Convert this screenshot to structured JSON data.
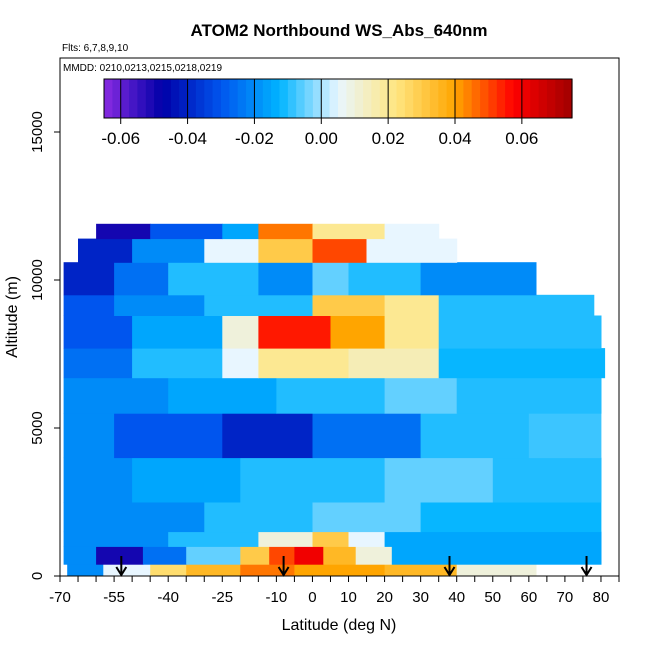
{
  "chart_data": {
    "type": "heatmap",
    "title": "ATOM2 Northbound WS_Abs_640nm",
    "subtitle_lines": [
      "Flts: 6,7,8,9,10",
      "MMDD: 0210,0213,0215,0218,0219"
    ],
    "xlabel": "Latitude (deg N)",
    "ylabel": "Altitude (m)",
    "xlim": [
      -70,
      85
    ],
    "ylim": [
      0,
      17500
    ],
    "x_ticks": [
      -70,
      -55,
      -40,
      -25,
      -10,
      0,
      10,
      20,
      30,
      40,
      50,
      60,
      70,
      80
    ],
    "y_ticks": [
      0,
      5000,
      10000,
      15000
    ],
    "colorbar": {
      "range": [
        -0.065,
        0.075
      ],
      "ticks": [
        -0.06,
        -0.04,
        -0.02,
        0.0,
        0.02,
        0.04,
        0.06
      ],
      "tick_labels": [
        "-0.06",
        "-0.04",
        "-0.02",
        "0.00",
        "0.02",
        "0.04",
        "0.06"
      ],
      "colors": [
        "#8a2be2",
        "#0000a8",
        "#0055ee",
        "#00b4ff",
        "#e8f6ff",
        "#ffe680",
        "#ffa500",
        "#ff0000",
        "#a00000"
      ]
    },
    "altitude_bands": [
      {
        "alt": [
          0,
          400
        ],
        "lat": [
          -68,
          62
        ],
        "cells": [
          [
            -68,
            -58,
            -0.02
          ],
          [
            -58,
            -45,
            0.005
          ],
          [
            -45,
            -35,
            0.025
          ],
          [
            -35,
            -20,
            0.035
          ],
          [
            -20,
            -5,
            0.045
          ],
          [
            -5,
            20,
            0.04
          ],
          [
            20,
            40,
            0.035
          ],
          [
            40,
            62,
            0.01
          ]
        ]
      },
      {
        "alt": [
          400,
          1000
        ],
        "lat": [
          -69,
          80
        ],
        "cells": [
          [
            -69,
            -60,
            -0.02
          ],
          [
            -60,
            -47,
            -0.05
          ],
          [
            -47,
            -35,
            -0.025
          ],
          [
            -35,
            -20,
            -0.005
          ],
          [
            -20,
            -12,
            0.03
          ],
          [
            -12,
            -5,
            0.05
          ],
          [
            -5,
            3,
            0.06
          ],
          [
            3,
            12,
            0.035
          ],
          [
            12,
            22,
            0.01
          ],
          [
            22,
            80,
            -0.015
          ]
        ]
      },
      {
        "alt": [
          1000,
          1500
        ],
        "lat": [
          -69,
          80
        ],
        "cells": [
          [
            -69,
            -40,
            -0.02
          ],
          [
            -40,
            -15,
            -0.01
          ],
          [
            -15,
            0,
            0.01
          ],
          [
            0,
            10,
            0.03
          ],
          [
            10,
            20,
            0.005
          ],
          [
            20,
            80,
            -0.015
          ]
        ]
      },
      {
        "alt": [
          1500,
          2500
        ],
        "lat": [
          -69,
          80
        ],
        "cells": [
          [
            -69,
            -30,
            -0.02
          ],
          [
            -30,
            0,
            -0.01
          ],
          [
            0,
            30,
            -0.005
          ],
          [
            30,
            80,
            -0.012
          ]
        ]
      },
      {
        "alt": [
          2500,
          4000
        ],
        "lat": [
          -69,
          80
        ],
        "cells": [
          [
            -69,
            -50,
            -0.02
          ],
          [
            -50,
            -20,
            -0.015
          ],
          [
            -20,
            20,
            -0.01
          ],
          [
            20,
            50,
            -0.005
          ],
          [
            50,
            80,
            -0.01
          ]
        ]
      },
      {
        "alt": [
          4000,
          5500
        ],
        "lat": [
          -69,
          80
        ],
        "cells": [
          [
            -69,
            -55,
            -0.02
          ],
          [
            -55,
            -25,
            -0.03
          ],
          [
            -25,
            0,
            -0.04
          ],
          [
            0,
            30,
            -0.025
          ],
          [
            30,
            60,
            -0.01
          ],
          [
            60,
            80,
            -0.008
          ]
        ]
      },
      {
        "alt": [
          5500,
          6700
        ],
        "lat": [
          -69,
          80
        ],
        "cells": [
          [
            -69,
            -40,
            -0.02
          ],
          [
            -40,
            -10,
            -0.015
          ],
          [
            -10,
            20,
            -0.01
          ],
          [
            20,
            40,
            -0.005
          ],
          [
            40,
            80,
            -0.01
          ]
        ]
      },
      {
        "alt": [
          6700,
          7700
        ],
        "lat": [
          -69,
          81
        ],
        "cells": [
          [
            -69,
            -50,
            -0.025
          ],
          [
            -50,
            -25,
            -0.01
          ],
          [
            -25,
            -15,
            0.005
          ],
          [
            -15,
            10,
            0.02
          ],
          [
            10,
            35,
            0.015
          ],
          [
            35,
            81,
            -0.012
          ]
        ]
      },
      {
        "alt": [
          7700,
          8800
        ],
        "lat": [
          -69,
          80
        ],
        "cells": [
          [
            -69,
            -50,
            -0.03
          ],
          [
            -50,
            -25,
            -0.015
          ],
          [
            -25,
            -15,
            0.01
          ],
          [
            -15,
            5,
            0.055
          ],
          [
            5,
            20,
            0.04
          ],
          [
            20,
            35,
            0.02
          ],
          [
            35,
            80,
            -0.01
          ]
        ]
      },
      {
        "alt": [
          8800,
          9500
        ],
        "lat": [
          -69,
          78
        ],
        "cells": [
          [
            -69,
            -55,
            -0.03
          ],
          [
            -55,
            -30,
            -0.02
          ],
          [
            -30,
            0,
            -0.01
          ],
          [
            0,
            20,
            0.03
          ],
          [
            20,
            35,
            0.02
          ],
          [
            35,
            78,
            -0.01
          ]
        ]
      },
      {
        "alt": [
          9500,
          10600
        ],
        "lat": [
          -69,
          62
        ],
        "cells": [
          [
            -69,
            -55,
            -0.04
          ],
          [
            -55,
            -40,
            -0.025
          ],
          [
            -40,
            -15,
            -0.01
          ],
          [
            -15,
            0,
            -0.02
          ],
          [
            0,
            10,
            -0.005
          ],
          [
            10,
            30,
            -0.01
          ],
          [
            30,
            62,
            -0.02
          ]
        ]
      },
      {
        "alt": [
          10600,
          11400
        ],
        "lat": [
          -65,
          40
        ],
        "cells": [
          [
            -65,
            -50,
            -0.04
          ],
          [
            -50,
            -30,
            -0.02
          ],
          [
            -30,
            -15,
            0.005
          ],
          [
            -15,
            0,
            0.03
          ],
          [
            0,
            15,
            0.05
          ],
          [
            15,
            40,
            0.005
          ]
        ]
      },
      {
        "alt": [
          11400,
          11900
        ],
        "lat": [
          -60,
          35
        ],
        "cells": [
          [
            -60,
            -45,
            -0.05
          ],
          [
            -45,
            -25,
            -0.03
          ],
          [
            -25,
            -15,
            -0.015
          ],
          [
            -15,
            0,
            0.045
          ],
          [
            0,
            20,
            0.02
          ],
          [
            20,
            35,
            0.005
          ]
        ]
      }
    ],
    "flight_markers_lat": [
      -53,
      -8,
      38,
      76
    ]
  }
}
